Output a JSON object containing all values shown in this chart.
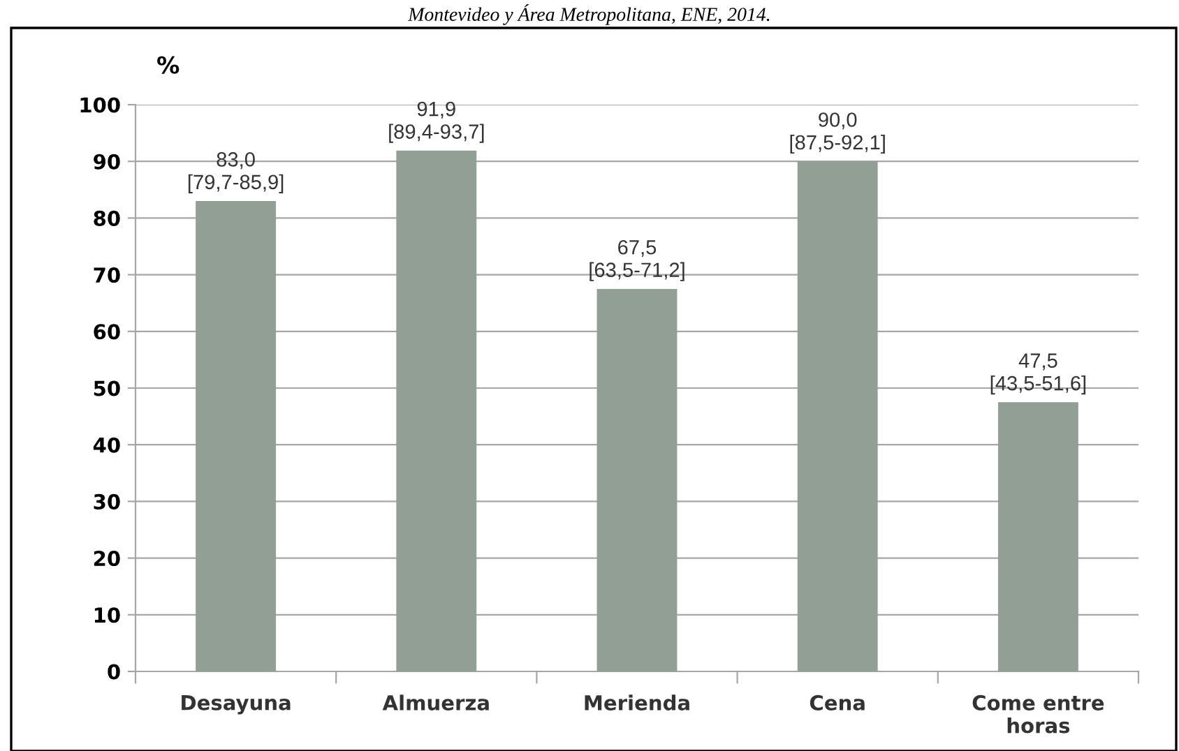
{
  "chart_data": {
    "type": "bar",
    "title": "Montevideo y Área Metropolitana, ENE, 2014.",
    "ylabel": "%",
    "categories": [
      "Desayuna",
      "Almuerza",
      "Merienda",
      "Cena",
      "Come entre\nhoras"
    ],
    "values": [
      83.0,
      91.9,
      67.5,
      90.0,
      47.5
    ],
    "value_labels": [
      "83,0\n[79,7-85,9]",
      "91,9\n[89,4-93,7]",
      "67,5\n[63,5-71,2]",
      "90,0\n[87,5-92,1]",
      "47,5\n[43,5-51,6]"
    ],
    "color": "#919f94",
    "ylim": [
      0,
      100
    ],
    "yticks": [
      0,
      10,
      20,
      30,
      40,
      50,
      60,
      70,
      80,
      90,
      100
    ],
    "grid": "y",
    "legend": false
  }
}
